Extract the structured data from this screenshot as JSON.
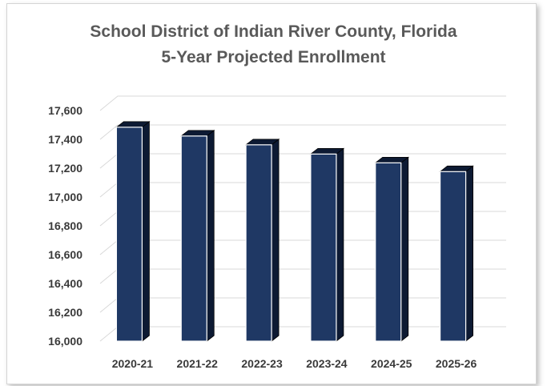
{
  "chart_data": {
    "type": "bar",
    "title": [
      "School District of Indian River County, Florida",
      "5-Year Projected Enrollment"
    ],
    "categories": [
      "2020-21",
      "2021-22",
      "2022-23",
      "2023-24",
      "2024-25",
      "2025-26"
    ],
    "values": [
      17484,
      17423,
      17362,
      17298,
      17237,
      17176
    ],
    "ylim": [
      16000,
      17600
    ],
    "yticks": [
      "16,000",
      "16,200",
      "16,400",
      "16,600",
      "16,800",
      "17,000",
      "17,200",
      "17,400",
      "17,600"
    ],
    "ytick_values": [
      16000,
      16200,
      16400,
      16600,
      16800,
      17000,
      17200,
      17400,
      17600
    ],
    "grid": true,
    "legend": "none",
    "colors": {
      "bar_front": "#1f3864",
      "bar_side": "#0d1a33",
      "bar_top": "#2b4a80",
      "grid": "#d9d9d9"
    }
  }
}
